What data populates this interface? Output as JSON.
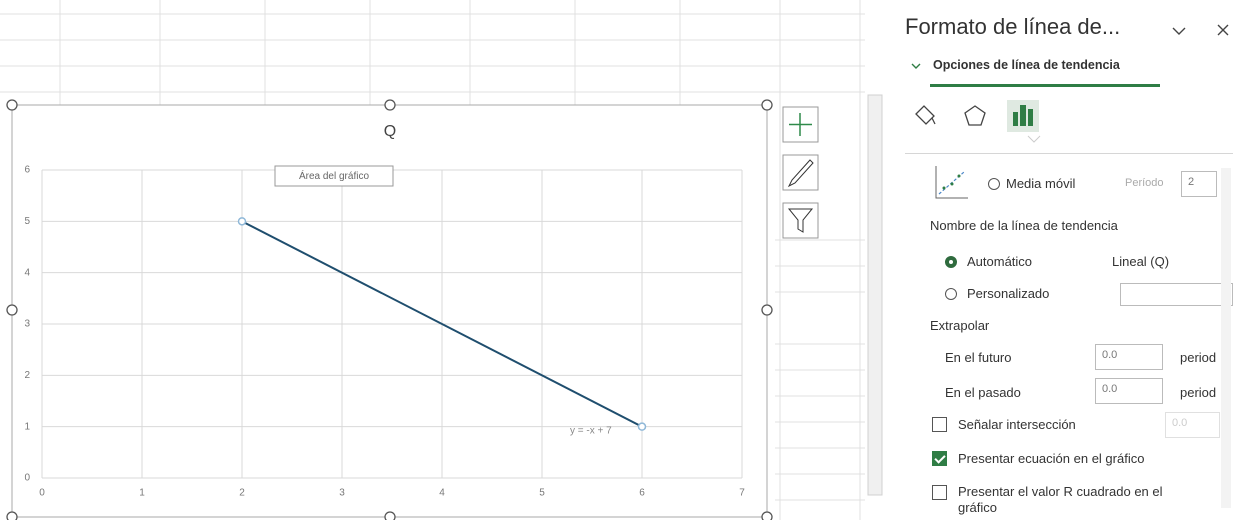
{
  "chart_data": {
    "type": "line",
    "title": "Q",
    "x": [
      2,
      6
    ],
    "series": [
      {
        "name": "Q",
        "color": "#1f4e6e",
        "marker_color": "#8fb8d8",
        "values": [
          5,
          1
        ]
      }
    ],
    "xlim": [
      0,
      7
    ],
    "xticks": [
      0,
      1,
      2,
      3,
      4,
      5,
      6,
      7
    ],
    "ylim": [
      0,
      6
    ],
    "yticks": [
      0,
      1,
      2,
      3,
      4,
      5,
      6
    ],
    "grid": true,
    "tooltip": "Área del gráfico",
    "equation": "y = -x + 7"
  },
  "pane": {
    "title": "Formato de línea de...",
    "section": "Opciones de línea de tendencia",
    "moving_average": {
      "label": "Media móvil",
      "selected": false,
      "period_label": "Período",
      "period": 2
    },
    "name_heading": "Nombre de la línea de tendencia",
    "name_options": [
      {
        "label": "Automático",
        "selected": true,
        "value": "Lineal (Q)"
      },
      {
        "label": "Personalizado",
        "selected": false
      }
    ],
    "extrapolate": {
      "heading": "Extrapolar",
      "forward": {
        "label": "En el futuro",
        "value": "0.0",
        "unit": "period"
      },
      "backward": {
        "label": "En el pasado",
        "value": "0.0",
        "unit": "period"
      }
    },
    "checks": [
      {
        "label": "Señalar intersección",
        "checked": false,
        "value": "0.0"
      },
      {
        "label": "Presentar ecuación en el gráfico",
        "checked": true
      },
      {
        "label": "Presentar el valor R cuadrado en el gráfico",
        "checked": false
      }
    ]
  }
}
